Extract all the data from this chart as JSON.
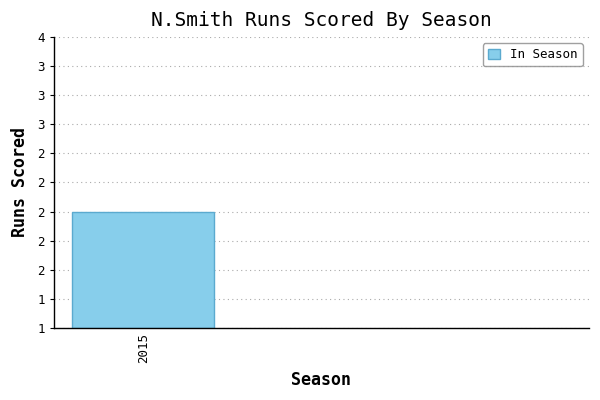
{
  "title": "N.Smith Runs Scored By Season",
  "xlabel": "Season",
  "ylabel": "Runs Scored",
  "seasons": [
    2015
  ],
  "values": [
    2
  ],
  "bar_color": "#87CEEB",
  "bar_edgecolor": "#5BAACF",
  "legend_label": "In Season",
  "ylim_min": 1.0,
  "ylim_max": 3.5,
  "xlim_min": 2014.5,
  "xlim_max": 2017.5,
  "ytick_interval": 0.25,
  "background_color": "#ffffff",
  "grid_color": "#aaaaaa",
  "font_family": "monospace",
  "title_fontsize": 14,
  "axis_label_fontsize": 12,
  "tick_fontsize": 9
}
